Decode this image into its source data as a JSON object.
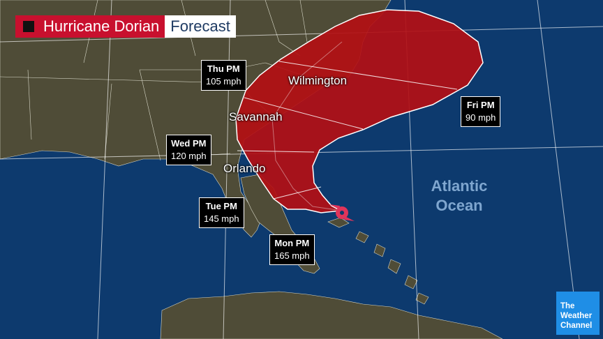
{
  "title": {
    "storm": "Hurricane Dorian",
    "type": "Forecast"
  },
  "forecast_points": [
    {
      "day": "Mon PM",
      "speed": "165 mph"
    },
    {
      "day": "Tue PM",
      "speed": "145 mph"
    },
    {
      "day": "Wed PM",
      "speed": "120 mph"
    },
    {
      "day": "Thu PM",
      "speed": "105 mph"
    },
    {
      "day": "Fri PM",
      "speed": "90 mph"
    }
  ],
  "cities": [
    "Wilmington",
    "Savannah",
    "Orlando"
  ],
  "ocean": {
    "line1": "Atlantic",
    "line2": "Ocean"
  },
  "logo": [
    "The",
    "Weather",
    "Channel"
  ],
  "colors": {
    "land": "#4e4c37",
    "ocean": "#0d3a6e",
    "cone": "#b30f13",
    "title_red": "#c8102e",
    "logo_blue": "#1f8ee6"
  },
  "icons": [
    "hurricane-icon"
  ]
}
